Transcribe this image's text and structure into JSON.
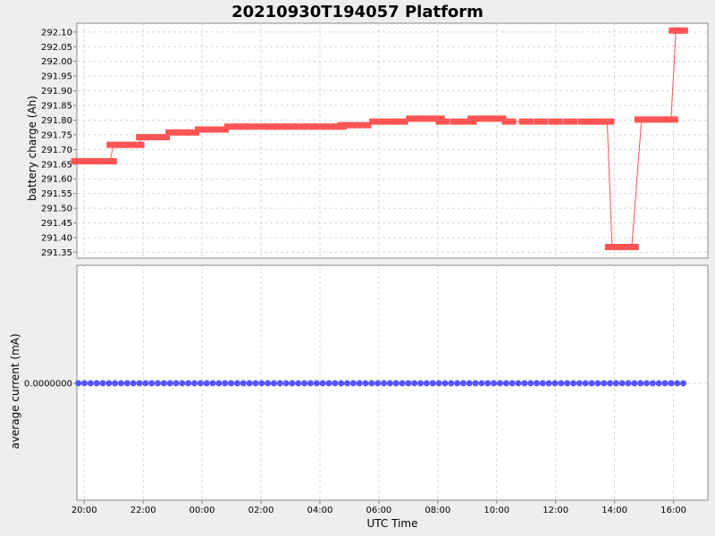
{
  "chart_data": [
    {
      "type": "line",
      "title": "20210930T194057 Platform",
      "ylabel": "battery charge (Ah)",
      "ylim": [
        291.33,
        292.13
      ],
      "yticks": [
        "292.10",
        "292.05",
        "292.00",
        "291.95",
        "291.90",
        "291.85",
        "291.80",
        "291.75",
        "291.70",
        "291.65",
        "291.60",
        "291.55",
        "291.50",
        "291.45",
        "291.40",
        "291.35"
      ],
      "grid": true,
      "color": "#ff5555",
      "series": [
        {
          "x": [
            "19:48",
            "20:04",
            "20:20",
            "20:36",
            "20:52",
            "21:00",
            "21:16",
            "21:32",
            "21:48",
            "22:00",
            "22:20",
            "22:40",
            "23:00",
            "23:20",
            "23:40",
            "00:00",
            "00:20",
            "00:40",
            "01:00",
            "01:20",
            "01:40",
            "02:00",
            "02:20",
            "02:40",
            "03:00",
            "03:20",
            "03:40",
            "04:00",
            "04:20",
            "04:40",
            "04:50",
            "05:10",
            "05:30",
            "05:55",
            "06:20",
            "06:45",
            "07:10",
            "07:35",
            "08:00",
            "08:10",
            "08:40",
            "09:05",
            "09:15",
            "09:40",
            "10:05",
            "10:25",
            "11:00",
            "11:30",
            "12:00",
            "12:30",
            "13:00",
            "13:25",
            "13:45",
            "13:55",
            "14:15",
            "14:35",
            "14:55",
            "15:15",
            "15:35",
            "15:55",
            "16:05",
            "16:15"
          ],
          "y": [
            291.66,
            291.66,
            291.66,
            291.66,
            291.66,
            291.716,
            291.716,
            291.716,
            291.716,
            291.742,
            291.742,
            291.742,
            291.758,
            291.758,
            291.758,
            291.768,
            291.768,
            291.768,
            291.778,
            291.778,
            291.778,
            291.778,
            291.778,
            291.778,
            291.778,
            291.778,
            291.778,
            291.778,
            291.778,
            291.778,
            291.783,
            291.783,
            291.783,
            291.795,
            291.795,
            291.795,
            291.805,
            291.805,
            291.805,
            291.795,
            291.795,
            291.795,
            291.805,
            291.805,
            291.805,
            291.795,
            291.795,
            291.795,
            291.795,
            291.795,
            291.795,
            291.795,
            291.795,
            291.368,
            291.368,
            291.368,
            291.802,
            291.802,
            291.802,
            291.802,
            292.105,
            292.105
          ]
        }
      ]
    },
    {
      "type": "scatter",
      "ylabel": "average current (mA)",
      "xlabel": "UTC Time",
      "yticks": [
        "0.0000000"
      ],
      "grid": true,
      "color": "#5555ff",
      "series": [
        {
          "x_range": [
            "19:48",
            "16:20"
          ],
          "count": 100,
          "y": 0.0
        }
      ]
    }
  ],
  "x_axis": {
    "start": "19:45",
    "end": "17:10",
    "tick_labels": [
      "20:00",
      "22:00",
      "00:00",
      "02:00",
      "04:00",
      "06:00",
      "08:00",
      "10:00",
      "12:00",
      "14:00",
      "16:00"
    ]
  }
}
